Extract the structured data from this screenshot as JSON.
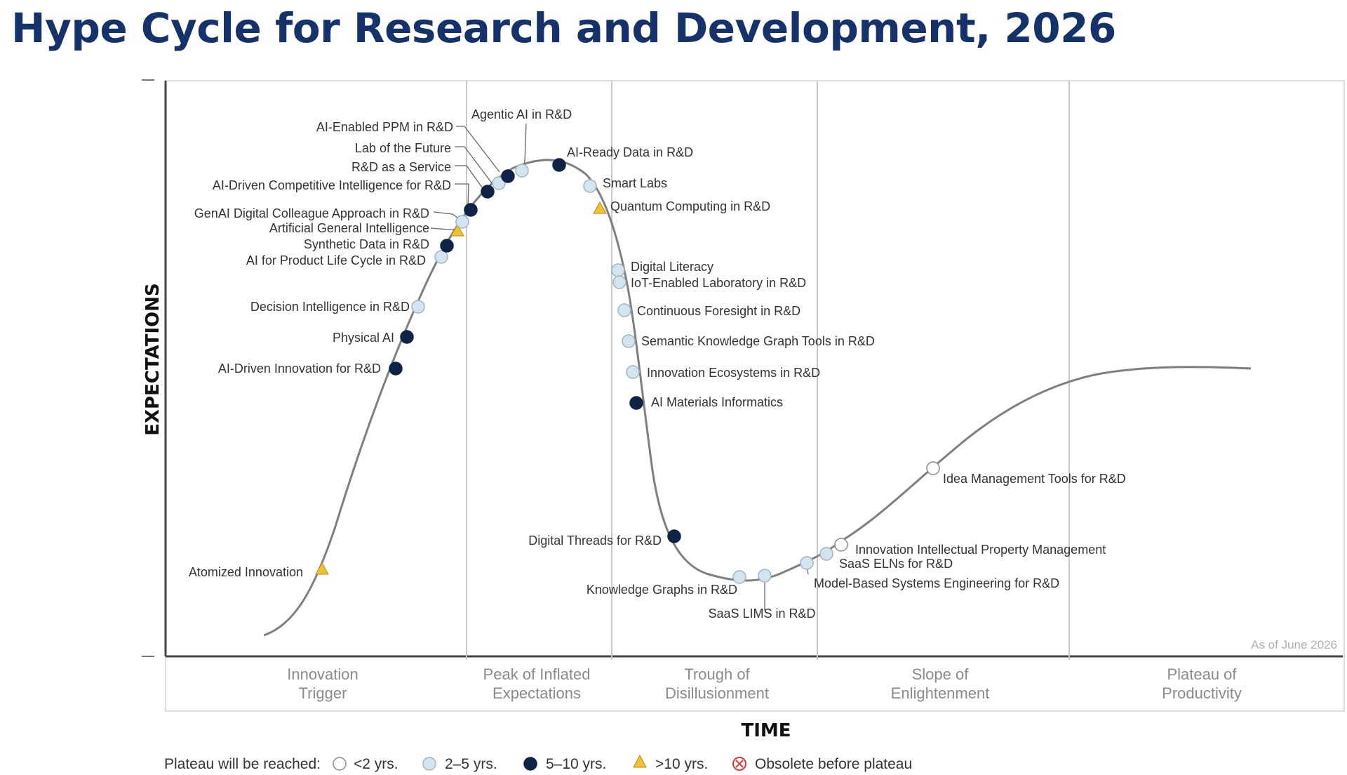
{
  "title": "Hype Cycle for Research and Development, 2026",
  "axes": {
    "y_label": "EXPECTATIONS",
    "x_label": "TIME"
  },
  "as_of": "As of June 2026",
  "phases": [
    {
      "line1": "Innovation",
      "line2": "Trigger"
    },
    {
      "line1": "Peak of Inflated",
      "line2": "Expectations"
    },
    {
      "line1": "Trough of",
      "line2": "Disillusionment"
    },
    {
      "line1": "Slope of",
      "line2": "Enlightenment"
    },
    {
      "line1": "Plateau of",
      "line2": "Productivity"
    }
  ],
  "legend": {
    "title": "Plateau will be reached:",
    "items": [
      {
        "label": "<2 yrs.",
        "marker": "white-circle"
      },
      {
        "label": "2–5 yrs.",
        "marker": "light-blue-circle"
      },
      {
        "label": "5–10 yrs.",
        "marker": "dark-navy-circle"
      },
      {
        "label": ">10 yrs.",
        "marker": "yellow-triangle"
      },
      {
        "label": "Obsolete before plateau",
        "marker": "red-x-circle"
      }
    ]
  },
  "colors": {
    "title": "#16326b",
    "lt2": "#ffffff",
    "y2to5": "#d2e4ef",
    "y5to10": "#0f2346",
    "gt10": "#f2c130",
    "obsolete": "#d93a3a",
    "curve": "#7f7f7f"
  },
  "technologies": [
    {
      "name": "Atomized Innovation",
      "plateau": ">10 yrs."
    },
    {
      "name": "AI-Driven Innovation for R&D",
      "plateau": "5–10 yrs."
    },
    {
      "name": "Physical AI",
      "plateau": "5–10 yrs."
    },
    {
      "name": "Decision Intelligence in R&D",
      "plateau": "2–5 yrs."
    },
    {
      "name": "AI for Product Life Cycle in R&D",
      "plateau": "2–5 yrs."
    },
    {
      "name": "Synthetic Data in R&D",
      "plateau": "5–10 yrs."
    },
    {
      "name": "Artificial General Intelligence",
      "plateau": ">10 yrs."
    },
    {
      "name": "GenAI Digital Colleague Approach in R&D",
      "plateau": "2–5 yrs."
    },
    {
      "name": "AI-Driven Competitive Intelligence for R&D",
      "plateau": "5–10 yrs."
    },
    {
      "name": "R&D as a Service",
      "plateau": "5–10 yrs."
    },
    {
      "name": "Lab of the Future",
      "plateau": "2–5 yrs."
    },
    {
      "name": "AI-Enabled PPM in R&D",
      "plateau": "5–10 yrs."
    },
    {
      "name": "Agentic AI in R&D",
      "plateau": "2–5 yrs."
    },
    {
      "name": "AI-Ready Data in R&D",
      "plateau": "5–10 yrs."
    },
    {
      "name": "Smart Labs",
      "plateau": "2–5 yrs."
    },
    {
      "name": "Quantum Computing in R&D",
      "plateau": ">10 yrs."
    },
    {
      "name": "Digital Literacy",
      "plateau": "2–5 yrs."
    },
    {
      "name": "IoT-Enabled Laboratory in R&D",
      "plateau": "2–5 yrs."
    },
    {
      "name": "Continuous Foresight in R&D",
      "plateau": "2–5 yrs."
    },
    {
      "name": "Semantic Knowledge Graph Tools in R&D",
      "plateau": "2–5 yrs."
    },
    {
      "name": "Innovation Ecosystems in R&D",
      "plateau": "2–5 yrs."
    },
    {
      "name": "AI Materials Informatics",
      "plateau": "5–10 yrs."
    },
    {
      "name": "Digital Threads for R&D",
      "plateau": "5–10 yrs."
    },
    {
      "name": "Knowledge Graphs in R&D",
      "plateau": "2–5 yrs."
    },
    {
      "name": "SaaS LIMS in R&D",
      "plateau": "2–5 yrs."
    },
    {
      "name": "Model-Based Systems Engineering for R&D",
      "plateau": "2–5 yrs."
    },
    {
      "name": "SaaS ELNs for R&D",
      "plateau": "2–5 yrs."
    },
    {
      "name": "Innovation Intellectual Property Management",
      "plateau": "<2 yrs."
    },
    {
      "name": "Idea Management Tools for R&D",
      "plateau": "<2 yrs."
    }
  ]
}
